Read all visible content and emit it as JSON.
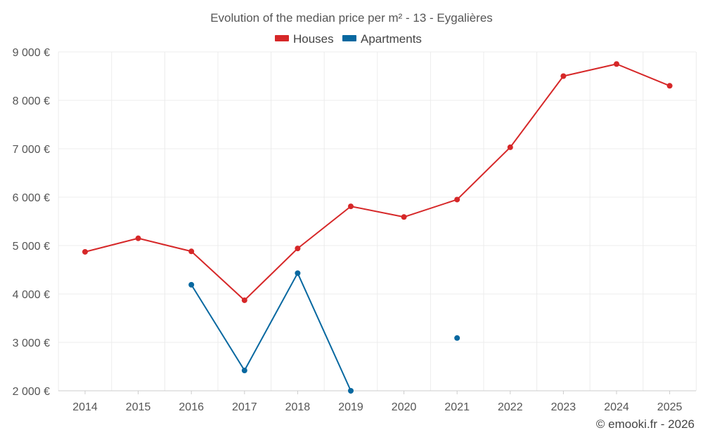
{
  "chart_data": {
    "type": "line",
    "title": "Evolution of the median price per m² - 13 - Eygalières",
    "xlabel": "",
    "ylabel": "",
    "categories": [
      "2014",
      "2015",
      "2016",
      "2017",
      "2018",
      "2019",
      "2020",
      "2021",
      "2022",
      "2023",
      "2024",
      "2025"
    ],
    "ylim": [
      2000,
      9000
    ],
    "yticks": [
      2000,
      3000,
      4000,
      5000,
      6000,
      7000,
      8000,
      9000
    ],
    "ytick_labels": [
      "2 000 €",
      "3 000 €",
      "4 000 €",
      "5 000 €",
      "6 000 €",
      "7 000 €",
      "8 000 €",
      "9 000 €"
    ],
    "grid": true,
    "legend_position": "top-center",
    "series": [
      {
        "name": "Houses",
        "color": "#d62728",
        "values": [
          4870,
          5150,
          4880,
          3870,
          4940,
          5810,
          5590,
          5950,
          7030,
          8500,
          8750,
          8300
        ]
      },
      {
        "name": "Apartments",
        "color": "#0868a0",
        "values": [
          null,
          null,
          4190,
          2420,
          4430,
          2000,
          null,
          3090,
          null,
          null,
          null,
          null
        ]
      }
    ],
    "source_note": "© emooki.fr - 2026"
  }
}
